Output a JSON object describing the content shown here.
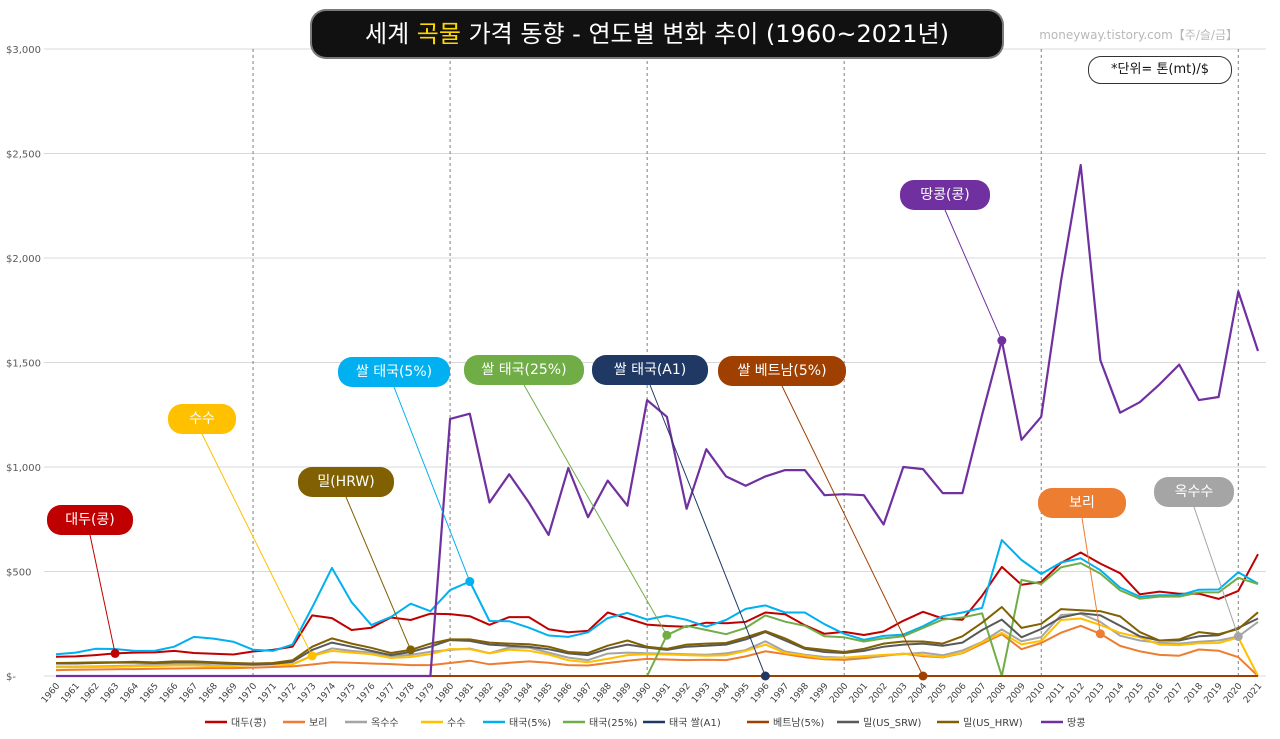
{
  "title": {
    "prefix": "세계 ",
    "highlight": "곡물",
    "suffix": " 가격 동향 - 연도별 변화 추이 (1960~2021년)"
  },
  "source": "moneyway.tistory.com【주/슬/금】",
  "unit": "*단위= 톤(mt)/$",
  "callouts": [
    {
      "label": "대두(콩)",
      "color": "#c00000",
      "series": "대두(콩)",
      "year": 1963
    },
    {
      "label": "수수",
      "color": "#ffc000",
      "series": "수수",
      "year": 1973
    },
    {
      "label": "밀(HRW)",
      "color": "#806000",
      "series": "밀(US_HRW)",
      "year": 1978
    },
    {
      "label": "쌀 태국(5%)",
      "color": "#00b0f0",
      "series": "태국(5%)",
      "year": 1981
    },
    {
      "label": "쌀 태국(25%)",
      "color": "#70ad47",
      "series": "태국(25%)",
      "year": 1991
    },
    {
      "label": "쌀 태국(A1)",
      "color": "#1f3864",
      "series": "태국 쌀(A1)",
      "year": 1996
    },
    {
      "label": "쌀 베트남(5%)",
      "color": "#a04000",
      "series": "베트남(5%)",
      "year": 2004
    },
    {
      "label": "땅콩(콩)",
      "color": "#7030a0",
      "series": "땅콩",
      "year": 2008
    },
    {
      "label": "보리",
      "color": "#ed7d31",
      "series": "보리",
      "year": 2013
    },
    {
      "label": "옥수수",
      "color": "#a5a5a5",
      "series": "옥수수",
      "year": 2020
    }
  ],
  "chart_data": {
    "type": "line",
    "title": "세계 곡물 가격 동향 - 연도별 변화 추이 (1960~2021년)",
    "xlabel": "",
    "ylabel": "",
    "ylim": [
      0,
      3000
    ],
    "yticks": [
      0,
      500,
      1000,
      1500,
      2000,
      2500,
      3000
    ],
    "ytick_labels": [
      "$-",
      "$500",
      "$1,000",
      "$1,500",
      "$2,000",
      "$2,500",
      "$3,000"
    ],
    "decade_markers": [
      1970,
      1980,
      1990,
      2000,
      2010,
      2020
    ],
    "x": [
      1960,
      1961,
      1962,
      1963,
      1964,
      1965,
      1966,
      1967,
      1968,
      1969,
      1970,
      1971,
      1972,
      1973,
      1974,
      1975,
      1976,
      1977,
      1978,
      1979,
      1980,
      1981,
      1982,
      1983,
      1984,
      1985,
      1986,
      1987,
      1988,
      1989,
      1990,
      1991,
      1992,
      1993,
      1994,
      1995,
      1996,
      1997,
      1998,
      1999,
      2000,
      2001,
      2002,
      2003,
      2004,
      2005,
      2006,
      2007,
      2008,
      2009,
      2010,
      2011,
      2012,
      2013,
      2014,
      2015,
      2016,
      2017,
      2018,
      2019,
      2020,
      2021
    ],
    "series": [
      {
        "name": "대두(콩)",
        "color": "#c00000",
        "values": [
          92,
          94,
          100,
          108,
          112,
          113,
          120,
          110,
          106,
          103,
          117,
          125,
          140,
          290,
          277,
          220,
          231,
          280,
          268,
          298,
          296,
          286,
          245,
          282,
          282,
          224,
          209,
          216,
          304,
          275,
          246,
          239,
          236,
          255,
          252,
          259,
          304,
          295,
          243,
          202,
          211,
          196,
          213,
          264,
          307,
          275,
          269,
          384,
          522,
          437,
          450,
          541,
          591,
          538,
          492,
          391,
          404,
          394,
          394,
          369,
          407,
          583
        ]
      },
      {
        "name": "보리",
        "color": "#ed7d31",
        "values": [
          28,
          30,
          31,
          32,
          33,
          35,
          36,
          37,
          38,
          38,
          40,
          43,
          46,
          55,
          66,
          63,
          60,
          57,
          52,
          52,
          62,
          73,
          56,
          63,
          70,
          63,
          52,
          50,
          62,
          73,
          82,
          79,
          76,
          78,
          76,
          94,
          118,
          105,
          90,
          80,
          77,
          85,
          96,
          107,
          95,
          89,
          109,
          154,
          200,
          128,
          158,
          207,
          240,
          202,
          144,
          118,
          101,
          97,
          127,
          121,
          90,
          0
        ]
      },
      {
        "name": "옥수수",
        "color": "#a5a5a5",
        "values": [
          45,
          45,
          46,
          48,
          50,
          55,
          55,
          55,
          51,
          52,
          58,
          58,
          56,
          98,
          132,
          120,
          112,
          95,
          101,
          116,
          125,
          131,
          109,
          136,
          136,
          112,
          88,
          76,
          107,
          112,
          109,
          107,
          104,
          102,
          108,
          124,
          166,
          117,
          102,
          91,
          88,
          90,
          99,
          105,
          112,
          99,
          122,
          163,
          223,
          166,
          186,
          292,
          298,
          259,
          193,
          170,
          159,
          155,
          164,
          170,
          189,
          259
        ]
      },
      {
        "name": "수수",
        "color": "#ffc000",
        "values": [
          42,
          42,
          43,
          44,
          47,
          48,
          50,
          50,
          47,
          48,
          52,
          54,
          55,
          96,
          120,
          112,
          104,
          86,
          91,
          105,
          129,
          128,
          108,
          126,
          121,
          103,
          75,
          66,
          82,
          100,
          104,
          103,
          100,
          97,
          99,
          120,
          150,
          110,
          98,
          84,
          88,
          95,
          101,
          106,
          100,
          91,
          111,
          161,
          206,
          151,
          168,
          268,
          275,
          244,
          206,
          185,
          150,
          148,
          157,
          158,
          184,
          0
        ]
      },
      {
        "name": "태국(5%)",
        "color": "#00b0f0",
        "values": [
          104,
          112,
          130,
          129,
          120,
          120,
          140,
          187,
          179,
          164,
          126,
          120,
          150,
          328,
          517,
          353,
          244,
          283,
          346,
          310,
          411,
          452,
          263,
          262,
          231,
          194,
          187,
          209,
          277,
          302,
          270,
          289,
          269,
          236,
          268,
          321,
          338,
          304,
          304,
          248,
          202,
          173,
          192,
          198,
          238,
          286,
          304,
          326,
          650,
          555,
          488,
          543,
          563,
          506,
          423,
          380,
          386,
          386,
          413,
          414,
          496,
          442
        ]
      },
      {
        "name": "태국(25%)",
        "color": "#70ad47",
        "values": [
          0,
          0,
          0,
          0,
          0,
          0,
          0,
          0,
          0,
          0,
          0,
          0,
          0,
          0,
          0,
          0,
          0,
          0,
          0,
          0,
          0,
          0,
          0,
          0,
          0,
          0,
          0,
          0,
          0,
          0,
          0,
          195,
          240,
          220,
          200,
          230,
          290,
          260,
          240,
          190,
          185,
          165,
          180,
          190,
          230,
          270,
          280,
          300,
          0,
          460,
          440,
          520,
          540,
          490,
          410,
          370,
          380,
          380,
          400,
          400,
          470,
          440
        ]
      },
      {
        "name": "태국 쌀(A1)",
        "color": "#1f3864",
        "values": [
          0,
          0,
          0,
          0,
          0,
          0,
          0,
          0,
          0,
          0,
          0,
          0,
          0,
          0,
          0,
          0,
          0,
          0,
          0,
          0,
          0,
          0,
          0,
          0,
          0,
          0,
          0,
          0,
          0,
          0,
          0,
          0,
          0,
          0,
          0,
          0,
          0,
          0,
          0,
          0,
          0,
          0,
          0,
          0,
          0,
          0,
          0,
          0,
          0,
          0,
          0,
          0,
          0,
          0,
          0,
          0,
          0,
          0,
          0,
          0,
          0,
          0
        ]
      },
      {
        "name": "베트남(5%)",
        "color": "#a04000",
        "values": [
          0,
          0,
          0,
          0,
          0,
          0,
          0,
          0,
          0,
          0,
          0,
          0,
          0,
          0,
          0,
          0,
          0,
          0,
          0,
          0,
          0,
          0,
          0,
          0,
          0,
          0,
          0,
          0,
          0,
          0,
          0,
          0,
          0,
          0,
          0,
          0,
          0,
          0,
          0,
          0,
          0,
          0,
          0,
          0,
          0,
          0,
          0,
          0,
          0,
          0,
          0,
          0,
          0,
          0,
          0,
          0,
          0,
          0,
          0,
          0,
          0,
          0
        ]
      },
      {
        "name": "밀(US_SRW)",
        "color": "#595959",
        "values": [
          60,
          60,
          62,
          64,
          64,
          62,
          65,
          65,
          62,
          58,
          55,
          58,
          68,
          125,
          160,
          140,
          120,
          100,
          115,
          140,
          172,
          168,
          150,
          145,
          140,
          128,
          108,
          100,
          130,
          150,
          136,
          125,
          140,
          145,
          150,
          175,
          210,
          170,
          130,
          115,
          110,
          120,
          140,
          150,
          155,
          145,
          160,
          220,
          270,
          185,
          225,
          280,
          300,
          290,
          240,
          190,
          170,
          170,
          190,
          195,
          230,
          275
        ]
      },
      {
        "name": "밀(US_HRW)",
        "color": "#806000",
        "values": [
          62,
          63,
          65,
          66,
          68,
          65,
          70,
          70,
          66,
          62,
          60,
          62,
          75,
          140,
          180,
          155,
          135,
          110,
          125,
          155,
          175,
          175,
          160,
          155,
          152,
          140,
          115,
          110,
          145,
          170,
          140,
          130,
          150,
          155,
          158,
          185,
          215,
          180,
          135,
          125,
          115,
          130,
          155,
          165,
          165,
          155,
          190,
          255,
          330,
          230,
          250,
          320,
          315,
          310,
          285,
          210,
          170,
          175,
          210,
          200,
          225,
          305
        ]
      },
      {
        "name": "땅콩",
        "color": "#7030a0",
        "values": [
          0,
          0,
          0,
          0,
          0,
          0,
          0,
          0,
          0,
          0,
          0,
          0,
          0,
          0,
          0,
          0,
          0,
          0,
          0,
          0,
          1230,
          1255,
          830,
          965,
          830,
          675,
          995,
          760,
          935,
          815,
          1320,
          1240,
          800,
          1085,
          955,
          910,
          955,
          985,
          985,
          865,
          870,
          865,
          725,
          1000,
          990,
          875,
          875,
          1250,
          1605,
          1130,
          1240,
          1890,
          2445,
          1510,
          1260,
          1310,
          1395,
          1490,
          1320,
          1335,
          1840,
          1555
        ]
      }
    ],
    "legend_position": "bottom"
  }
}
